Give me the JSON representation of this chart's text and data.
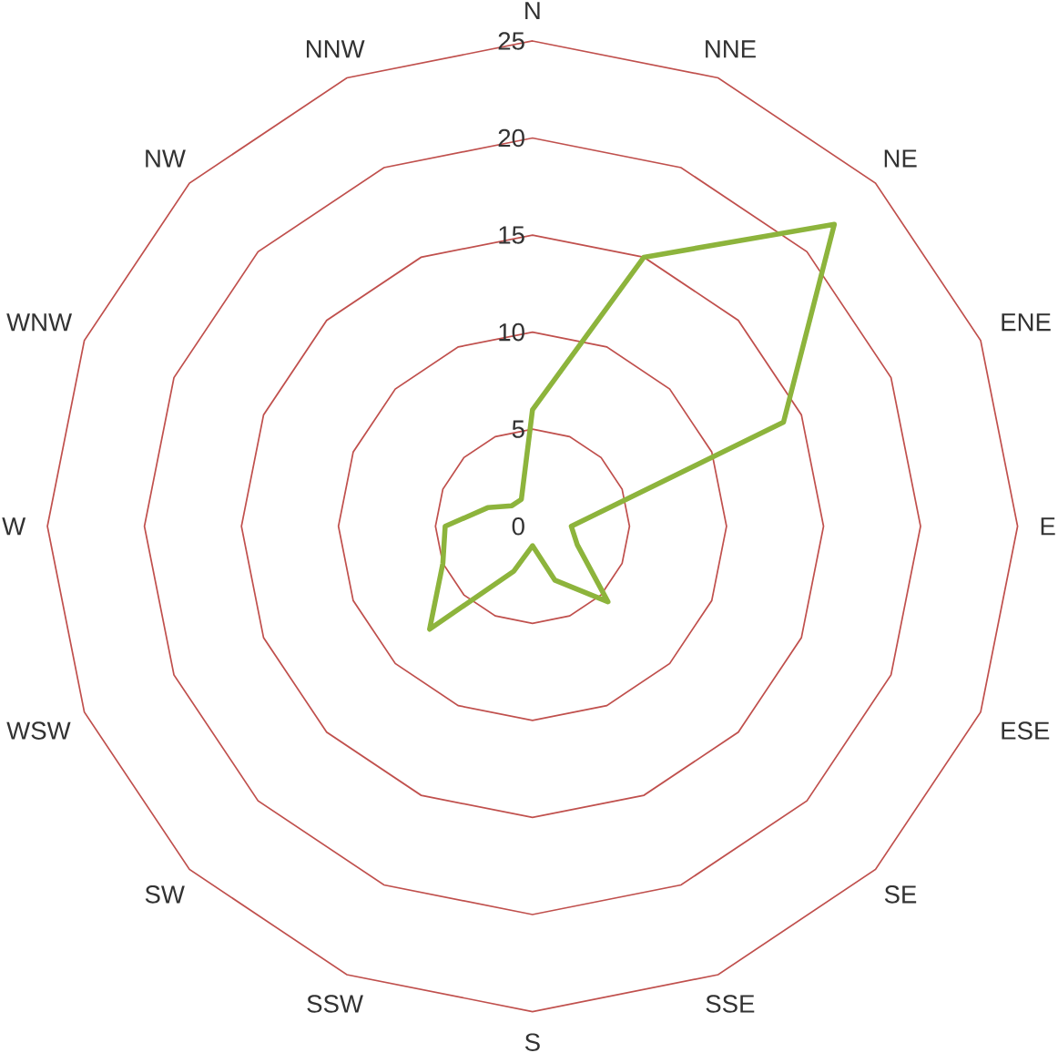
{
  "chart_data": {
    "type": "radar",
    "categories": [
      "N",
      "NNE",
      "NE",
      "ENE",
      "E",
      "ESE",
      "SE",
      "SSE",
      "S",
      "SSW",
      "SW",
      "WSW",
      "W",
      "WNW",
      "NW",
      "NNW"
    ],
    "series": [
      {
        "color": "#8db43c",
        "values": [
          6,
          15,
          22,
          14,
          2,
          2.5,
          5.5,
          3,
          1,
          2.5,
          7.5,
          5,
          4.5,
          2.5,
          1.5,
          1.5
        ]
      }
    ],
    "ylim": [
      0,
      25
    ],
    "yticks": [
      0,
      5,
      10,
      15,
      20,
      25
    ],
    "grid": true,
    "marker": "none",
    "line_style": "solid"
  }
}
